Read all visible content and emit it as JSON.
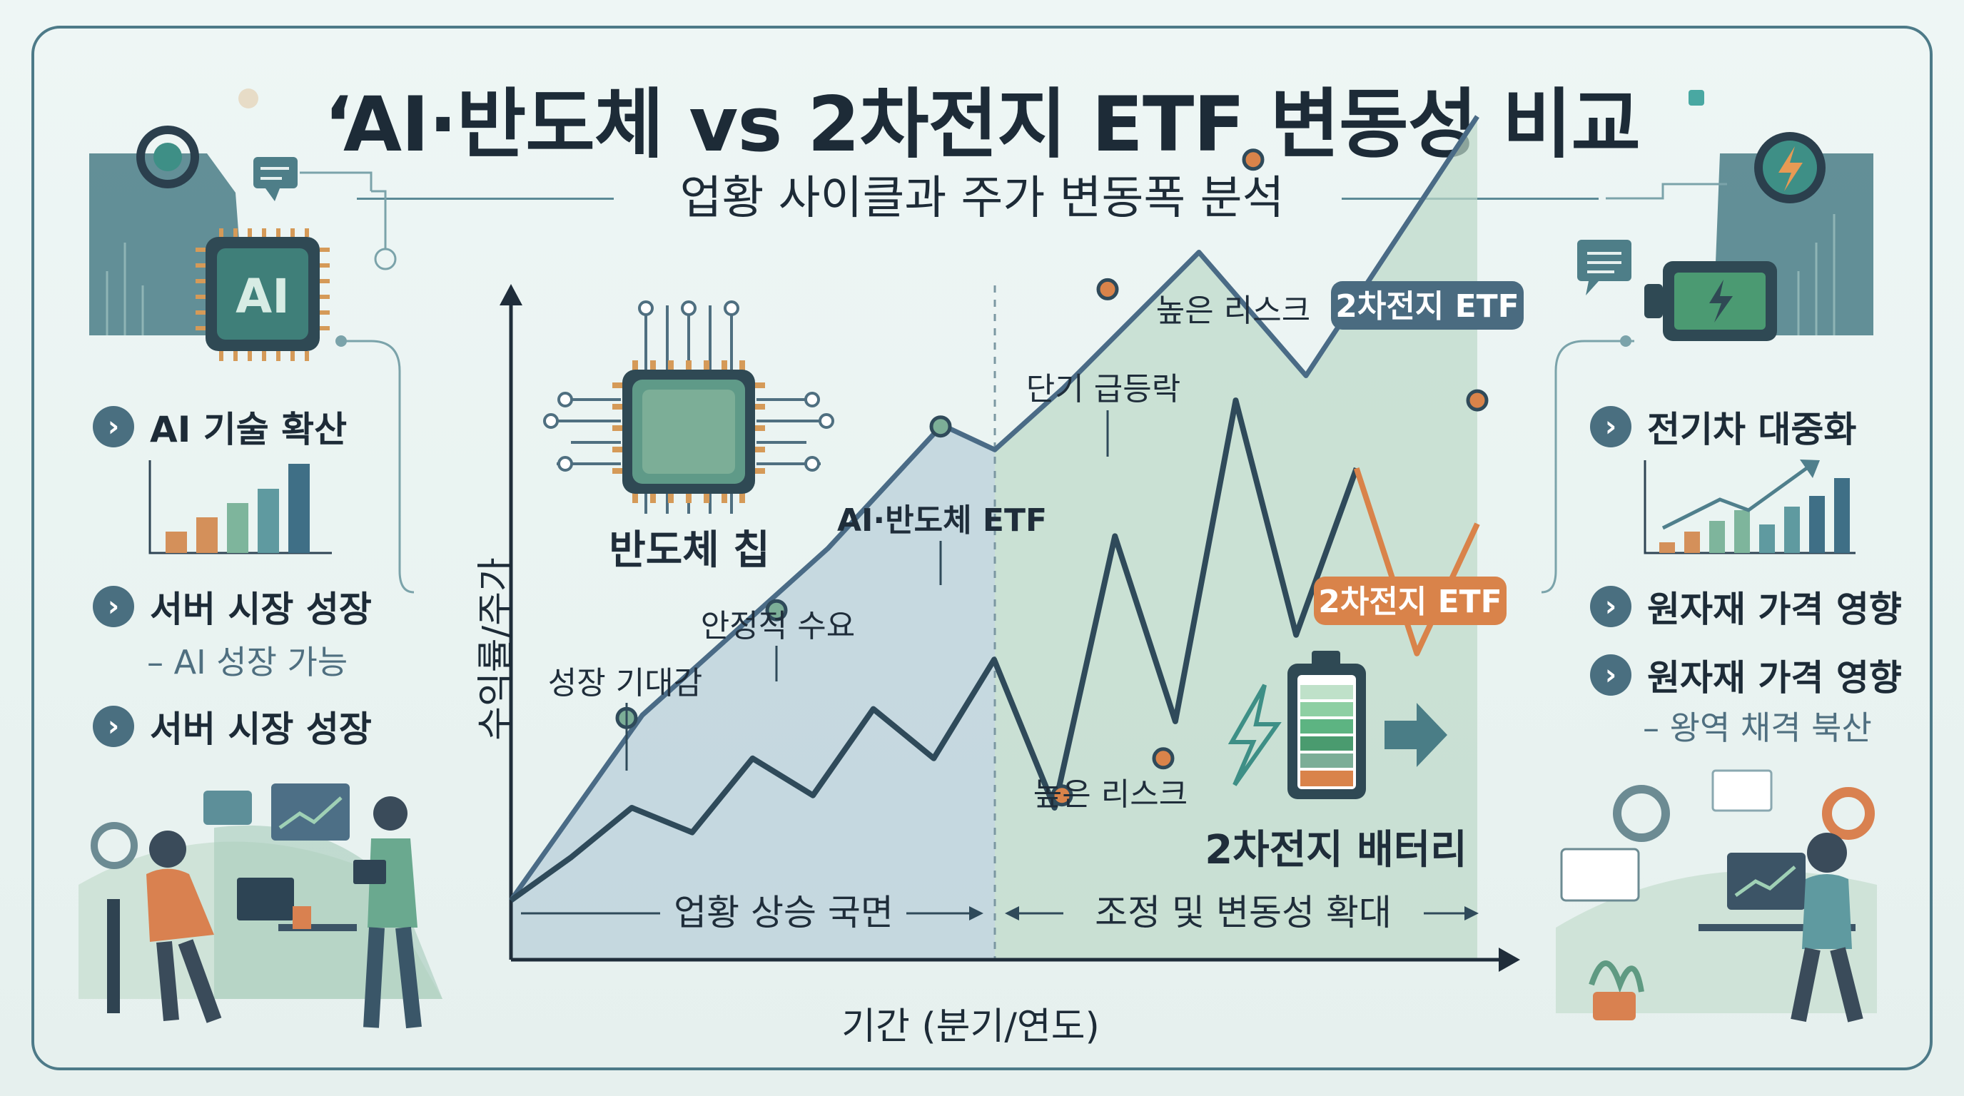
{
  "title": "‘AI·반도체 vs 2차전지 ETF 변동성 비교",
  "subtitle": "업황 사이클과 주가 변동폭 분석",
  "left_panel": {
    "bullets": [
      "AI 기술 확산",
      "서버 시장 성장",
      "서버 시장 성장"
    ],
    "note": "– AI 성장 가능",
    "chip_label": "AI"
  },
  "right_panel": {
    "bullets": [
      "전기차 대중화",
      "원자재 가격 영향",
      "원자재 가격 영향"
    ],
    "note": "– 왕역 채격 북산"
  },
  "chart": {
    "x_axis_title": "기간 (분기/연도)",
    "y_axis_title": "수익률/주가",
    "phase_left": "업황 상승 국면",
    "phase_right": "조정 및 변동성 확대",
    "semi_chip_label": "반도체 칩",
    "battery_label": "2차전지 배터리"
  },
  "chart_data": {
    "type": "line",
    "title": "",
    "xlabel": "기간 (분기/연도)",
    "ylabel": "수익률/주가",
    "grid": false,
    "series": [
      {
        "name": "AI·반도체 ETF",
        "x": [
          0,
          1,
          2,
          3,
          4,
          5,
          6,
          7,
          8,
          9,
          10,
          11,
          12,
          13
        ],
        "values": [
          5,
          20,
          24,
          30,
          38,
          47,
          53,
          60,
          66,
          78,
          68,
          64,
          74,
          88
        ],
        "color": "#4a6b86"
      },
      {
        "name": "2차전지 ETF",
        "x": [
          0,
          1,
          2,
          3,
          4,
          5,
          6,
          7,
          8,
          9,
          10,
          11,
          12,
          13,
          14,
          15,
          16
        ],
        "values": [
          5,
          12,
          20,
          16,
          28,
          22,
          36,
          28,
          44,
          20,
          64,
          34,
          86,
          48,
          75,
          45,
          66
        ],
        "color": "#2f4a5a"
      }
    ],
    "annotations": [
      {
        "text": "성장 기대감",
        "series": "AI·반도체 ETF"
      },
      {
        "text": "안정적 수요",
        "series": "AI·반도체 ETF"
      },
      {
        "text": "AI·반도체 ETF",
        "series": "AI·반도체 ETF"
      },
      {
        "text": "단기 급등락",
        "series": "2차전지 ETF"
      },
      {
        "text": "높은 리스크",
        "series": "2차전지 ETF"
      },
      {
        "text": "높은 리스크",
        "series": "2차전지 ETF"
      },
      {
        "text": "2차전지 ETF",
        "series": "2차전지 ETF",
        "style": "dark-badge"
      },
      {
        "text": "2차전지 ETF",
        "series": "2차전지 ETF",
        "style": "orange-badge"
      }
    ],
    "regions": [
      {
        "label": "업황 상승 국면"
      },
      {
        "label": "조정 및 변동성 확대"
      }
    ]
  },
  "colors": {
    "frame": "#4d7a88",
    "dark_line": "#2f4a5a",
    "semi_fill": "#b7cdd8",
    "battery_fill": "#bcd9c8",
    "accent_orange": "#d9834a",
    "badge_dark": "#4a6b80"
  }
}
